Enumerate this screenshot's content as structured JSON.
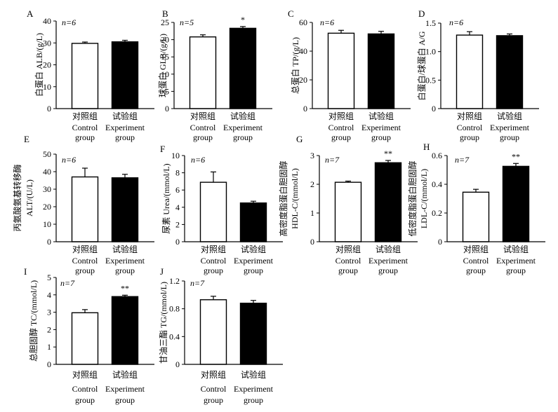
{
  "figure": {
    "panels": [
      {
        "letter": "A",
        "n": "n=6",
        "ylabel": [
          "白蛋白 ALB/(g/L)"
        ],
        "ticks": [
          "0",
          "10",
          "20",
          "30",
          "40"
        ]
      },
      {
        "letter": "B",
        "n": "n=5",
        "ylabel": [
          "球蛋白 GLB/(g/L)"
        ],
        "ticks": [
          "0",
          "5",
          "10",
          "15",
          "20",
          "25"
        ]
      },
      {
        "letter": "C",
        "n": "n=6",
        "ylabel": [
          "总蛋白 TP/(g/L)"
        ],
        "ticks": [
          "0",
          "20",
          "40",
          "60"
        ]
      },
      {
        "letter": "D",
        "n": "n=6",
        "ylabel": [
          "白蛋白/球蛋白 A/G"
        ],
        "ticks": [
          "0",
          "0.5",
          "1.0",
          "1.5"
        ]
      },
      {
        "letter": "E",
        "n": "n=6",
        "ylabel": [
          "丙氨酸氨基转移酶",
          "ALT/(U/L)"
        ],
        "ticks": [
          "0",
          "10",
          "20",
          "30",
          "40",
          "50"
        ]
      },
      {
        "letter": "F",
        "n": "n=6",
        "ylabel": [
          "尿素 Urea/(mmol/L)"
        ],
        "ticks": [
          "0",
          "2",
          "4",
          "6",
          "8",
          "10"
        ]
      },
      {
        "letter": "G",
        "n": "n=7",
        "ylabel": [
          "高密度脂蛋白胆固醇",
          "HDL-C/(mmol/L)"
        ],
        "ticks": [
          "0",
          "1",
          "2",
          "3"
        ]
      },
      {
        "letter": "H",
        "n": "n=7",
        "ylabel": [
          "低密度脂蛋白胆固醇",
          "LDL-C/(mmol/L)"
        ],
        "ticks": [
          "0",
          "0.2",
          "0.4",
          "0.6"
        ]
      },
      {
        "letter": "I",
        "n": "n=7",
        "ylabel": [
          "总胆固醇 TC/(mmol/L)"
        ],
        "ticks": [
          "0",
          "1",
          "2",
          "3",
          "4",
          "5"
        ]
      },
      {
        "letter": "J",
        "n": "n=7",
        "ylabel": [
          "甘油三酯 TG/(mmol/L)"
        ],
        "ticks": [
          "0",
          "0.4",
          "0.8",
          "1.2"
        ]
      }
    ],
    "groups": {
      "control": [
        "对照组",
        "Control",
        "group"
      ],
      "experiment": [
        "试验组",
        "Experiment",
        "group"
      ]
    }
  },
  "chart_data": [
    {
      "type": "bar",
      "panel": "A",
      "categories": [
        "Control group",
        "Experiment group"
      ],
      "values": [
        29.8,
        30.5
      ],
      "errors": [
        0.6,
        0.7
      ],
      "significance": [
        "",
        ""
      ],
      "ylabel": "白蛋白 ALB/(g/L)",
      "ylim": [
        0,
        40
      ],
      "colors": [
        "#ffffff",
        "#000000"
      ]
    },
    {
      "type": "bar",
      "panel": "B",
      "categories": [
        "Control group",
        "Experiment group"
      ],
      "values": [
        20.8,
        23.3
      ],
      "errors": [
        0.6,
        0.5
      ],
      "significance": [
        "",
        "*"
      ],
      "ylabel": "球蛋白 GLB/(g/L)",
      "ylim": [
        0,
        25
      ],
      "colors": [
        "#ffffff",
        "#000000"
      ]
    },
    {
      "type": "bar",
      "panel": "C",
      "categories": [
        "Control group",
        "Experiment group"
      ],
      "values": [
        52.5,
        52.0
      ],
      "errors": [
        2.0,
        1.8
      ],
      "significance": [
        "",
        ""
      ],
      "ylabel": "总蛋白 TP/(g/L)",
      "ylim": [
        0,
        60
      ],
      "colors": [
        "#ffffff",
        "#000000"
      ]
    },
    {
      "type": "bar",
      "panel": "D",
      "categories": [
        "Control group",
        "Experiment group"
      ],
      "values": [
        1.29,
        1.28
      ],
      "errors": [
        0.06,
        0.03
      ],
      "significance": [
        "",
        ""
      ],
      "ylabel": "白蛋白/球蛋白 A/G",
      "ylim": [
        0,
        1.5
      ],
      "colors": [
        "#ffffff",
        "#000000"
      ]
    },
    {
      "type": "bar",
      "panel": "E",
      "categories": [
        "Control group",
        "Experiment group"
      ],
      "values": [
        37.0,
        36.5
      ],
      "errors": [
        5.0,
        2.0
      ],
      "significance": [
        "",
        ""
      ],
      "ylabel": "丙氨酸氨基转移酶 ALT/(U/L)",
      "ylim": [
        0,
        50
      ],
      "colors": [
        "#ffffff",
        "#000000"
      ]
    },
    {
      "type": "bar",
      "panel": "F",
      "categories": [
        "Control group",
        "Experiment group"
      ],
      "values": [
        6.9,
        4.5
      ],
      "errors": [
        1.2,
        0.2
      ],
      "significance": [
        "",
        ""
      ],
      "ylabel": "尿素 Urea/(mmol/L)",
      "ylim": [
        0,
        10
      ],
      "colors": [
        "#ffffff",
        "#000000"
      ]
    },
    {
      "type": "bar",
      "panel": "G",
      "categories": [
        "Control group",
        "Experiment group"
      ],
      "values": [
        2.07,
        2.75
      ],
      "errors": [
        0.04,
        0.08
      ],
      "significance": [
        "",
        "**"
      ],
      "ylabel": "高密度脂蛋白胆固醇 HDL-C/(mmol/L)",
      "ylim": [
        0,
        3
      ],
      "colors": [
        "#ffffff",
        "#000000"
      ]
    },
    {
      "type": "bar",
      "panel": "H",
      "categories": [
        "Control group",
        "Experiment group"
      ],
      "values": [
        0.345,
        0.525
      ],
      "errors": [
        0.02,
        0.02
      ],
      "significance": [
        "",
        "**"
      ],
      "ylabel": "低密度脂蛋白胆固醇 LDL-C/(mmol/L)",
      "ylim": [
        0,
        0.6
      ],
      "colors": [
        "#ffffff",
        "#000000"
      ]
    },
    {
      "type": "bar",
      "panel": "I",
      "categories": [
        "Control group",
        "Experiment group"
      ],
      "values": [
        2.97,
        3.9
      ],
      "errors": [
        0.18,
        0.08
      ],
      "significance": [
        "",
        "**"
      ],
      "ylabel": "总胆固醇 TC/(mmol/L)",
      "ylim": [
        0,
        5
      ],
      "colors": [
        "#ffffff",
        "#000000"
      ]
    },
    {
      "type": "bar",
      "panel": "J",
      "categories": [
        "Control group",
        "Experiment group"
      ],
      "values": [
        0.93,
        0.88
      ],
      "errors": [
        0.05,
        0.04
      ],
      "significance": [
        "",
        ""
      ],
      "ylabel": "甘油三酯 TG/(mmol/L)",
      "ylim": [
        0,
        1.2
      ],
      "colors": [
        "#ffffff",
        "#000000"
      ]
    }
  ]
}
